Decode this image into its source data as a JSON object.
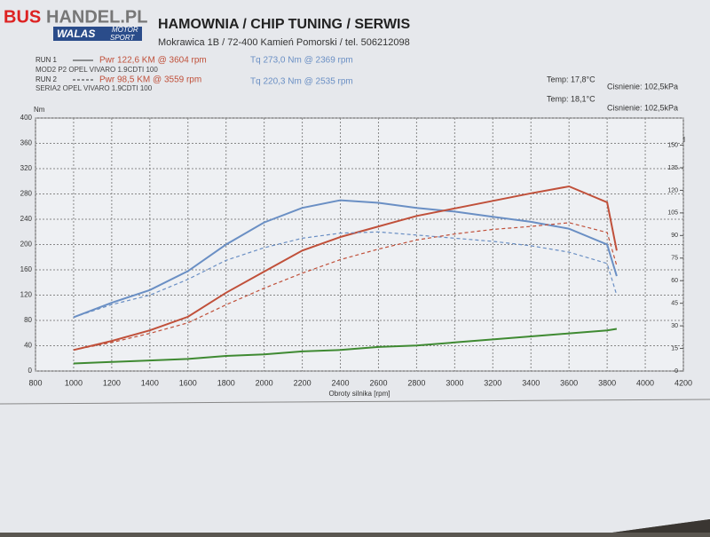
{
  "header": {
    "logo_bus": "BUS",
    "logo_handel": "HANDEL.PL",
    "logo_walas": "WALAS",
    "logo_motor": "MOTOR",
    "logo_sport": "SPORT",
    "title": "HAMOWNIA / CHIP TUNING / SERWIS",
    "address": "Mokrawica 1B / 72-400 Kamień Pomorski / tel. 506212098"
  },
  "runs": [
    {
      "label": "RUN 1",
      "power": "Pwr 122,6 KM @ 3604 rpm",
      "torque": "Tq 273,0 Nm @ 2369 rpm",
      "vehicle": "MOD2 P2 OPEL VIVARO 1.9CDTI 100",
      "temp": "Temp: 17,8°C",
      "pressure": "Cisnienie: 102,5kPa"
    },
    {
      "label": "RUN 2",
      "power": "Pwr 98,5 KM @ 3559 rpm",
      "torque": "Tq 220,3 Nm @ 2535 rpm",
      "vehicle": "SERIA2 OPEL VIVARO 1.9CDTI 100",
      "temp": "Temp: 18,1°C",
      "pressure": "Cisnienie: 102,5kPa"
    }
  ],
  "chart_data": {
    "type": "line",
    "xlabel": "Obroty silnika [rpm]",
    "ylabel": "Nm",
    "y2label": "KM",
    "x": [
      1000,
      1200,
      1400,
      1600,
      1800,
      2000,
      2200,
      2400,
      2600,
      2800,
      3000,
      3200,
      3400,
      3600,
      3800,
      3850
    ],
    "series": [
      {
        "color": "#6a8fc4",
        "dash": false,
        "values": [
          85,
          108,
          128,
          158,
          200,
          235,
          258,
          270,
          266,
          258,
          252,
          244,
          236,
          225,
          200,
          150
        ]
      },
      {
        "color": "#c0503a",
        "dash": false,
        "axis": "y2",
        "values": [
          14,
          20,
          27,
          36,
          52,
          66,
          80,
          89,
          96,
          103,
          108,
          113,
          118,
          122.6,
          112,
          80
        ]
      },
      {
        "color": "#6a8fc4",
        "dash": true,
        "values": [
          85,
          105,
          120,
          145,
          175,
          195,
          210,
          218,
          220,
          215,
          210,
          205,
          198,
          188,
          170,
          120
        ]
      },
      {
        "color": "#c0503a",
        "dash": true,
        "axis": "y2",
        "values": [
          14,
          19,
          25,
          32,
          44,
          55,
          65,
          74,
          81,
          87,
          91,
          94,
          96,
          98.5,
          92,
          70
        ]
      },
      {
        "color": "#3f8a32",
        "dash": false,
        "axis": "y2",
        "values": [
          5,
          6,
          7,
          8,
          10,
          11,
          13,
          14,
          16,
          17,
          19,
          21,
          23,
          25,
          27,
          28
        ]
      }
    ],
    "xlim": [
      800,
      4200
    ],
    "xticks": [
      800,
      1000,
      1200,
      1400,
      1600,
      1800,
      2000,
      2200,
      2400,
      2600,
      2800,
      3000,
      3200,
      3400,
      3600,
      3800,
      4000,
      4200
    ],
    "ylim": [
      0,
      400
    ],
    "yticks": [
      0,
      40,
      80,
      120,
      160,
      200,
      240,
      280,
      320,
      360,
      400
    ],
    "y2lim": [
      0,
      168
    ],
    "y2ticks": [
      0,
      15,
      30,
      45,
      60,
      75,
      90,
      105,
      120,
      135,
      150
    ],
    "grid": true
  }
}
